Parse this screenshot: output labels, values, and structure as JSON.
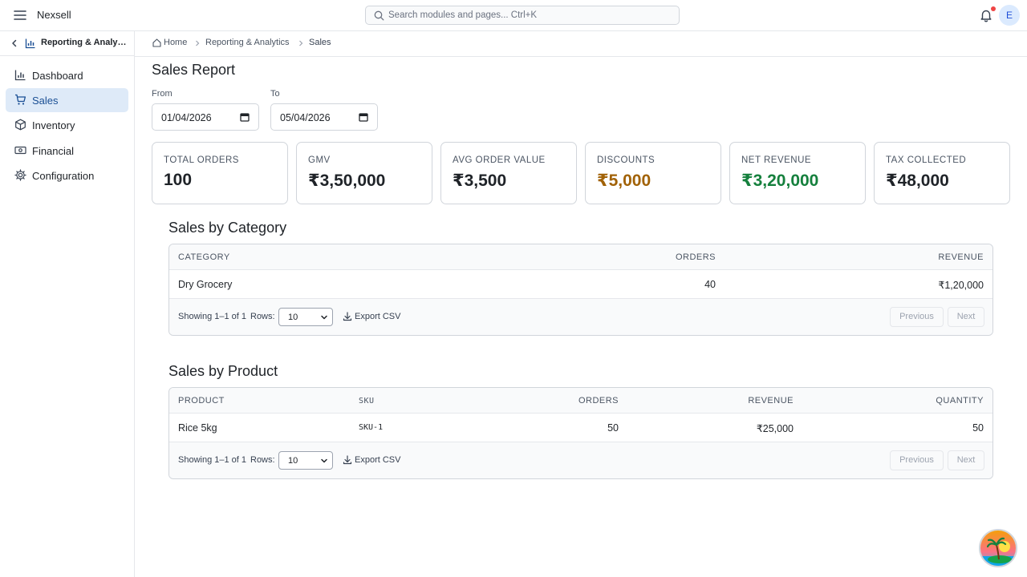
{
  "app": {
    "name": "Nexsell"
  },
  "search": {
    "placeholder": "Search modules and pages... Ctrl+K"
  },
  "user": {
    "initial": "E"
  },
  "sidebar": {
    "module": "Reporting & Analytics",
    "items": [
      {
        "label": "Dashboard",
        "icon": "bar-chart-icon"
      },
      {
        "label": "Sales",
        "icon": "cart-icon",
        "active": true
      },
      {
        "label": "Inventory",
        "icon": "box-icon"
      },
      {
        "label": "Financial",
        "icon": "money-icon"
      },
      {
        "label": "Configuration",
        "icon": "gear-icon"
      }
    ]
  },
  "breadcrumb": {
    "home": "Home",
    "section": "Reporting & Analytics",
    "current": "Sales"
  },
  "page": {
    "title": "Sales Report"
  },
  "filters": {
    "from_label": "From",
    "from_value": "01/04/2026",
    "to_label": "To",
    "to_value": "05/04/2026"
  },
  "kpis": [
    {
      "label": "TOTAL ORDERS",
      "value": "100",
      "color": "#1f2328"
    },
    {
      "label": "GMV",
      "value": "₹3,50,000",
      "color": "#1f2328"
    },
    {
      "label": "AVG ORDER VALUE",
      "value": "₹3,500",
      "color": "#1f2328"
    },
    {
      "label": "DISCOUNTS",
      "value": "₹5,000",
      "color": "#a16207"
    },
    {
      "label": "NET REVENUE",
      "value": "₹3,20,000",
      "color": "#15803d"
    },
    {
      "label": "TAX COLLECTED",
      "value": "₹48,000",
      "color": "#1f2328"
    }
  ],
  "category_table": {
    "title": "Sales by Category",
    "headers": [
      "CATEGORY",
      "ORDERS",
      "REVENUE"
    ],
    "rows": [
      [
        "Dry Grocery",
        "40",
        "₹1,20,000"
      ]
    ],
    "showing": "Showing 1–1 of 1",
    "rows_label": "Rows:",
    "rows_value": "10",
    "export": "Export CSV",
    "prev": "Previous",
    "next": "Next"
  },
  "product_table": {
    "title": "Sales by Product",
    "headers": [
      "PRODUCT",
      "SKU",
      "ORDERS",
      "REVENUE",
      "QUANTITY"
    ],
    "rows": [
      [
        "Rice 5kg",
        "SKU-1",
        "50",
        "₹25,000",
        "50"
      ]
    ],
    "showing": "Showing 1–1 of 1",
    "rows_label": "Rows:",
    "rows_value": "10",
    "export": "Export CSV",
    "prev": "Previous",
    "next": "Next"
  }
}
